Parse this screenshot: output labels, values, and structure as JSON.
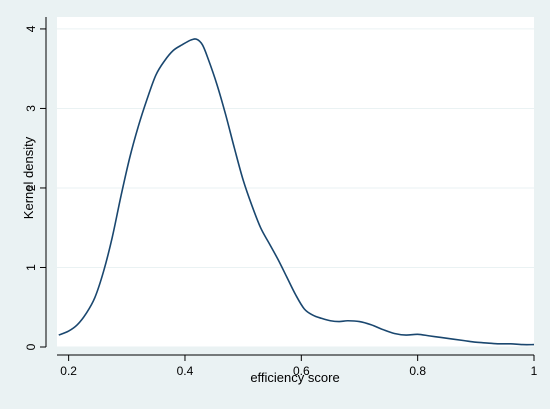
{
  "chart_data": {
    "type": "line",
    "title": "",
    "xlabel": "efficiency score",
    "ylabel": "Kernel density",
    "xlim": [
      0.18,
      1.0
    ],
    "ylim": [
      0,
      4.15
    ],
    "x_ticks": [
      {
        "value": 0.2,
        "label": "0.2"
      },
      {
        "value": 0.4,
        "label": "0.4"
      },
      {
        "value": 0.6,
        "label": "0.6"
      },
      {
        "value": 0.8,
        "label": "0.8"
      },
      {
        "value": 1.0,
        "label": "1"
      }
    ],
    "y_ticks": [
      {
        "value": 0,
        "label": "0"
      },
      {
        "value": 1,
        "label": "1"
      },
      {
        "value": 2,
        "label": "2"
      },
      {
        "value": 3,
        "label": "3"
      },
      {
        "value": 4,
        "label": "4"
      }
    ],
    "grid": true,
    "grid_axis": "y",
    "colors": {
      "line": "#1a476f",
      "background": "#eaf2f3",
      "plot_area": "#ffffff",
      "grid": "#eaf2f3"
    },
    "series": [
      {
        "x": [
          0.183,
          0.2,
          0.215,
          0.23,
          0.245,
          0.26,
          0.275,
          0.29,
          0.305,
          0.32,
          0.335,
          0.35,
          0.365,
          0.38,
          0.395,
          0.41,
          0.42,
          0.43,
          0.44,
          0.455,
          0.47,
          0.485,
          0.5,
          0.515,
          0.53,
          0.545,
          0.56,
          0.575,
          0.59,
          0.605,
          0.62,
          0.635,
          0.65,
          0.665,
          0.68,
          0.7,
          0.72,
          0.74,
          0.76,
          0.78,
          0.8,
          0.82,
          0.84,
          0.86,
          0.88,
          0.9,
          0.92,
          0.94,
          0.96,
          0.98,
          1.0
        ],
        "y": [
          0.15,
          0.2,
          0.28,
          0.42,
          0.62,
          0.95,
          1.38,
          1.9,
          2.38,
          2.78,
          3.12,
          3.42,
          3.6,
          3.73,
          3.8,
          3.86,
          3.87,
          3.8,
          3.62,
          3.3,
          2.92,
          2.5,
          2.1,
          1.78,
          1.5,
          1.3,
          1.1,
          0.88,
          0.66,
          0.48,
          0.4,
          0.36,
          0.33,
          0.32,
          0.33,
          0.32,
          0.28,
          0.22,
          0.17,
          0.15,
          0.16,
          0.14,
          0.12,
          0.1,
          0.08,
          0.06,
          0.05,
          0.04,
          0.04,
          0.03,
          0.03
        ]
      }
    ]
  }
}
